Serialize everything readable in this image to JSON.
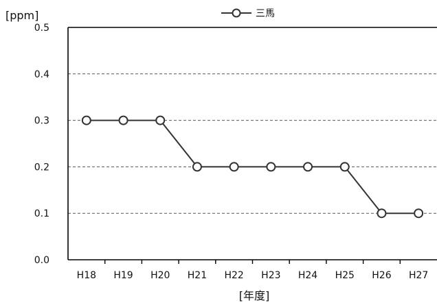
{
  "chart_data": {
    "type": "line",
    "categories": [
      "H18",
      "H19",
      "H20",
      "H21",
      "H22",
      "H23",
      "H24",
      "H25",
      "H26",
      "H27"
    ],
    "series": [
      {
        "name": "三馬",
        "values": [
          0.3,
          0.3,
          0.3,
          0.2,
          0.2,
          0.2,
          0.2,
          0.2,
          0.1,
          0.1
        ]
      }
    ],
    "ylim": [
      0,
      0.5
    ],
    "yticks": [
      "0.0",
      "0.1",
      "0.2",
      "0.3",
      "0.4",
      "0.5"
    ],
    "ylabel": "[ppm]",
    "xlabel": "[年度]",
    "grid": "horizontal-dashed",
    "legend_position": "top-center",
    "colors": {
      "line": "#333333",
      "marker_fill": "#ffffff",
      "marker_stroke": "#333333",
      "grid": "#555555"
    }
  }
}
